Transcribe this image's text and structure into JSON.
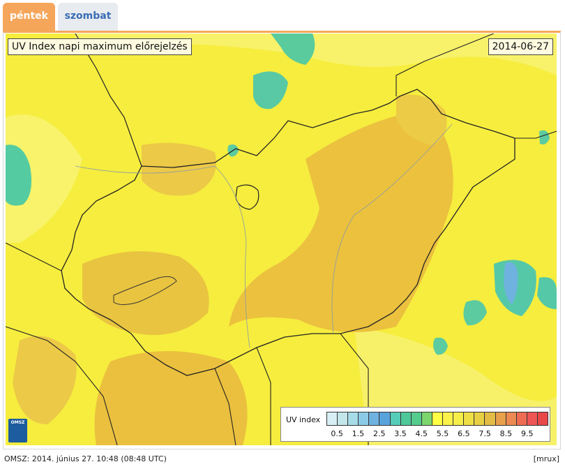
{
  "tabs": [
    {
      "label": "péntek",
      "active": true
    },
    {
      "label": "szombat",
      "active": false
    }
  ],
  "map": {
    "title": "UV Index napi maximum előrejelzés",
    "date": "2014-06-27",
    "logo_text": "OMSZ"
  },
  "legend": {
    "title": "UV index",
    "ticks": [
      "0.5",
      "1.5",
      "2.5",
      "3.5",
      "4.5",
      "5.5",
      "6.5",
      "7.5",
      "8.5",
      "9.5"
    ],
    "colors": [
      "#d8f0f5",
      "#c2e6ea",
      "#a6dce8",
      "#8ccbe6",
      "#6fb2e0",
      "#58a3dc",
      "#55cdb8",
      "#4fc99a",
      "#55cc8e",
      "#7bd66e",
      "#ffff44",
      "#fbf24a",
      "#f6ee48",
      "#efdf44",
      "#e9cf44",
      "#e2bc44",
      "#e8a04a",
      "#ec8a52",
      "#ee6b52",
      "#ef5555",
      "#e84848"
    ]
  },
  "footer": {
    "left": "OMSZ: 2014. június 27. 10:48 (08:48  UTC)",
    "right": "[mrux]"
  },
  "colors": {
    "tab_active": "#f5a65b",
    "tab_inactive": "#e8ebef",
    "map_base": "#f6ed3e",
    "map_orange": "#ebc13e",
    "map_teal": "#55cba1"
  }
}
